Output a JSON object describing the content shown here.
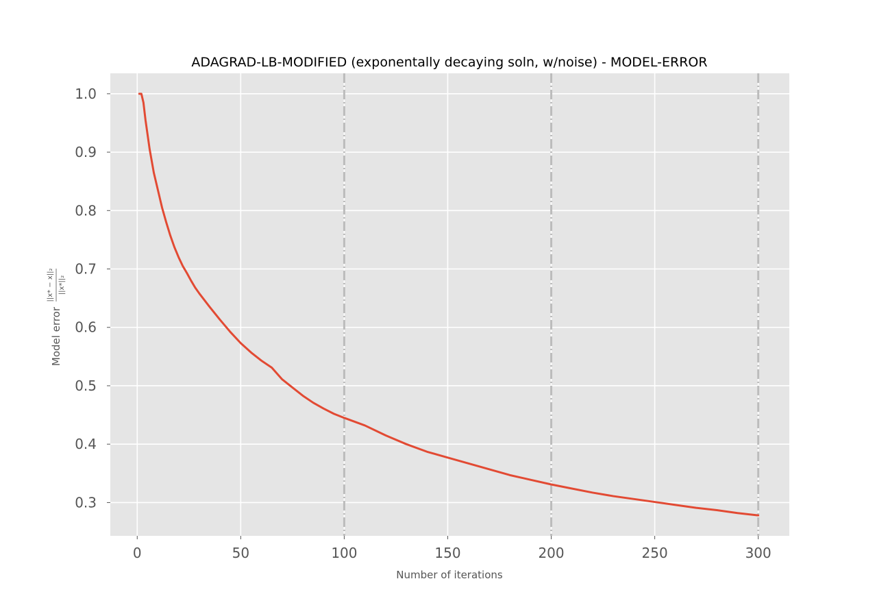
{
  "chart_data": {
    "type": "line",
    "title": "ADAGRAD-LB-MODIFIED (exponentally decaying soln, w/noise) - MODEL-ERROR",
    "xlabel": "Number of iterations",
    "ylabel": {
      "prefix": "Model error",
      "numerator": "||x* − x||₂",
      "denominator": "||x*||₂"
    },
    "xlim": [
      -13,
      315
    ],
    "ylim": [
      0.243,
      1.035
    ],
    "xticks": [
      0,
      50,
      100,
      150,
      200,
      250,
      300
    ],
    "yticks": [
      0.3,
      0.4,
      0.5,
      0.6,
      0.7,
      0.8,
      0.9,
      1.0
    ],
    "xtick_labels": [
      "0",
      "50",
      "100",
      "150",
      "200",
      "250",
      "300"
    ],
    "ytick_labels": [
      "0.3",
      "0.4",
      "0.5",
      "0.6",
      "0.7",
      "0.8",
      "0.9",
      "1.0"
    ],
    "vlines": [
      100,
      200,
      300
    ],
    "grid": true,
    "series": [
      {
        "color": "#e24a33",
        "x": [
          1,
          2,
          3,
          4,
          6,
          8,
          10,
          12,
          14,
          16,
          18,
          20,
          22,
          24,
          26,
          28,
          30,
          35,
          40,
          45,
          50,
          55,
          60,
          65,
          70,
          75,
          80,
          85,
          90,
          95,
          100,
          110,
          120,
          130,
          140,
          150,
          160,
          170,
          180,
          190,
          200,
          210,
          220,
          230,
          240,
          250,
          260,
          270,
          280,
          290,
          300
        ],
        "y": [
          1.0,
          1.0,
          0.985,
          0.955,
          0.905,
          0.865,
          0.835,
          0.805,
          0.78,
          0.757,
          0.737,
          0.72,
          0.705,
          0.693,
          0.68,
          0.668,
          0.658,
          0.635,
          0.613,
          0.592,
          0.573,
          0.557,
          0.543,
          0.531,
          0.511,
          0.497,
          0.483,
          0.471,
          0.461,
          0.452,
          0.445,
          0.432,
          0.415,
          0.4,
          0.387,
          0.377,
          0.367,
          0.357,
          0.347,
          0.339,
          0.331,
          0.324,
          0.317,
          0.311,
          0.306,
          0.301,
          0.296,
          0.291,
          0.287,
          0.282,
          0.278
        ]
      }
    ]
  },
  "colors": {
    "plot_background": "#e5e5e5",
    "grid": "#ffffff",
    "line": "#e24a33",
    "vline": "#bcbcbc"
  }
}
